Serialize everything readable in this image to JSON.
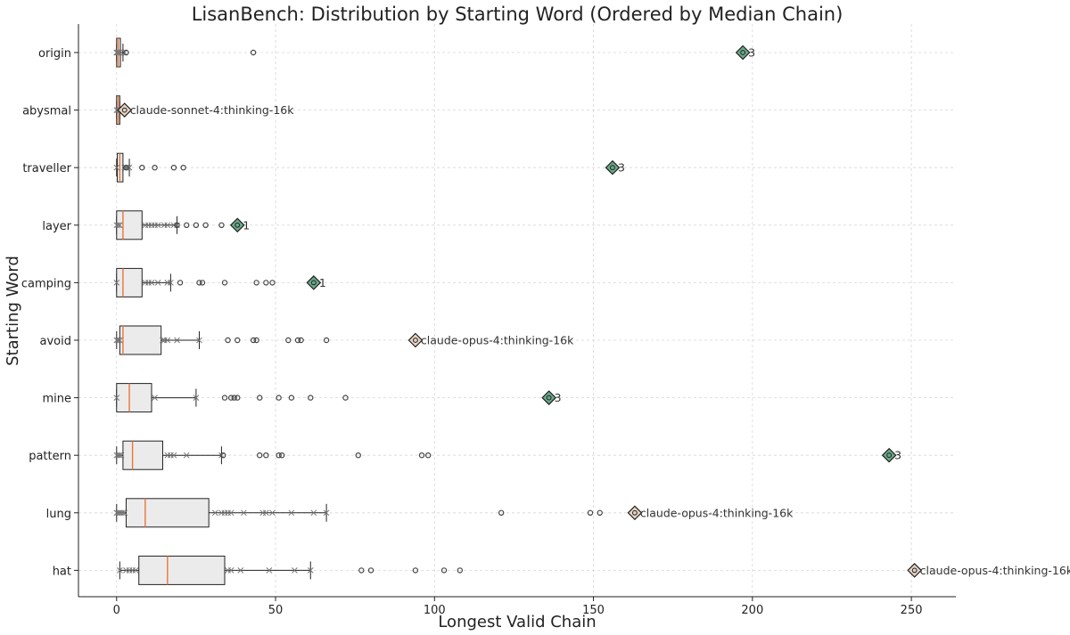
{
  "chart_data": {
    "type": "boxplot",
    "title": "LisanBench: Distribution by Starting Word (Ordered by Median Chain)",
    "xlabel": "Longest Valid Chain",
    "ylabel": "Starting Word",
    "xlim": [
      -12,
      264
    ],
    "xticks": [
      0,
      50,
      100,
      150,
      200,
      250
    ],
    "grid": true,
    "orientation": "horizontal",
    "colors": {
      "box_fill": "#ebebeb",
      "median": "#e8763a",
      "best_multi": "#6aa889",
      "best_single": "#e6d2c2"
    },
    "categories": [
      {
        "name": "origin",
        "whisker_low": 0,
        "q1": 0,
        "median": 0.5,
        "q3": 1.2,
        "whisker_high": 2,
        "points": [
          0,
          0,
          0.3,
          0.8,
          1.5,
          2.5
        ],
        "outliers": [
          3,
          43
        ],
        "best": {
          "value": 197,
          "label": "3",
          "kind": "multi"
        }
      },
      {
        "name": "abysmal",
        "whisker_low": 0,
        "q1": 0,
        "median": 0.5,
        "q3": 1,
        "whisker_high": 1,
        "points": [
          0,
          0.5,
          1
        ],
        "outliers": [],
        "best": {
          "value": 2.5,
          "label": "claude-sonnet-4:thinking-16k",
          "kind": "single"
        }
      },
      {
        "name": "traveller",
        "whisker_low": 0,
        "q1": 0.2,
        "median": 1,
        "q3": 2,
        "whisker_high": 4,
        "points": [
          0,
          2.5,
          3,
          3.5,
          4
        ],
        "outliers": [
          3,
          8,
          12,
          18,
          21
        ],
        "best": {
          "value": 156,
          "label": "3",
          "kind": "multi"
        }
      },
      {
        "name": "layer",
        "whisker_low": 0,
        "q1": 0,
        "median": 2,
        "q3": 8,
        "whisker_high": 19,
        "points": [
          0,
          0.5,
          1,
          9,
          10,
          11,
          12,
          13,
          15,
          16,
          18,
          19
        ],
        "outliers": [
          19,
          22,
          25,
          28,
          33
        ],
        "best": {
          "value": 38,
          "label": "1",
          "kind": "multi"
        }
      },
      {
        "name": "camping",
        "whisker_low": 0,
        "q1": 0,
        "median": 2,
        "q3": 8,
        "whisker_high": 17,
        "points": [
          0,
          9,
          10,
          11,
          13,
          16,
          17
        ],
        "outliers": [
          20,
          26,
          27,
          34,
          44,
          47,
          49
        ],
        "best": {
          "value": 62,
          "label": "1",
          "kind": "multi"
        }
      },
      {
        "name": "avoid",
        "whisker_low": 0,
        "q1": 1,
        "median": 2,
        "q3": 14,
        "whisker_high": 26,
        "points": [
          0,
          0.5,
          1,
          14.5,
          15,
          16,
          19,
          26
        ],
        "outliers": [
          35,
          38,
          43,
          44,
          54,
          57,
          58,
          66
        ],
        "best": {
          "value": 94,
          "label": "claude-opus-4:thinking-16k",
          "kind": "single"
        }
      },
      {
        "name": "mine",
        "whisker_low": 0,
        "q1": 0,
        "median": 4,
        "q3": 11,
        "whisker_high": 25,
        "points": [
          0,
          12,
          25
        ],
        "outliers": [
          34,
          36,
          37,
          38,
          45,
          51,
          55,
          61,
          72
        ],
        "best": {
          "value": 136,
          "label": "3",
          "kind": "multi"
        }
      },
      {
        "name": "pattern",
        "whisker_low": 0,
        "q1": 2,
        "median": 5,
        "q3": 14.5,
        "whisker_high": 33,
        "points": [
          0,
          0.5,
          1,
          1.5,
          16,
          17,
          18,
          22,
          33
        ],
        "outliers": [
          33.5,
          45,
          47,
          51,
          52,
          76,
          96,
          98
        ],
        "best": {
          "value": 243,
          "label": "3",
          "kind": "multi"
        }
      },
      {
        "name": "lung",
        "whisker_low": 0,
        "q1": 3,
        "median": 9,
        "q3": 29,
        "whisker_high": 66,
        "points": [
          0,
          0.5,
          1,
          1.5,
          2,
          2.5,
          31,
          33,
          34,
          35,
          36,
          40,
          46,
          47,
          49,
          55,
          62,
          66
        ],
        "outliers": [
          121,
          149,
          152
        ],
        "best": {
          "value": 163,
          "label": "claude-opus-4:thinking-16k",
          "kind": "single"
        }
      },
      {
        "name": "hat",
        "whisker_low": 1,
        "q1": 7,
        "median": 16,
        "q3": 34,
        "whisker_high": 61,
        "points": [
          1,
          3,
          4,
          5,
          6,
          35,
          36,
          39,
          48,
          56,
          61
        ],
        "outliers": [
          77,
          80,
          94,
          103,
          108
        ],
        "best": {
          "value": 251,
          "label": "claude-opus-4:thinking-16k",
          "kind": "single"
        }
      }
    ]
  }
}
